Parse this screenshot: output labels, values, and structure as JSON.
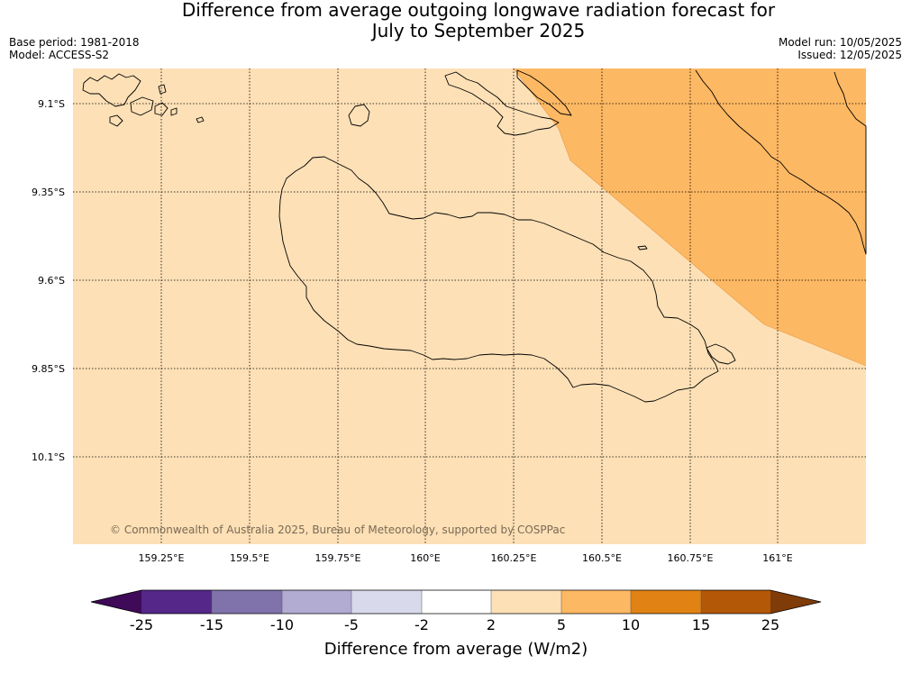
{
  "title": {
    "line1": "Difference from average outgoing longwave radiation forecast for",
    "line2": "July to September 2025"
  },
  "meta": {
    "base_period": "Base period: 1981-2018",
    "model": "Model: ACCESS-S2",
    "model_run": "Model run: 10/05/2025",
    "issued": "Issued: 12/05/2025"
  },
  "map": {
    "lat_labels": [
      "9.1°S",
      "9.35°S",
      "9.6°S",
      "9.85°S",
      "10.1°S"
    ],
    "lon_labels": [
      "159.25°E",
      "159.5°E",
      "159.75°E",
      "160°E",
      "160.25°E",
      "160.5°E",
      "160.75°E",
      "161°E"
    ],
    "copyright": "© Commonwealth of Australia 2025, Bureau of Meteorology, supported by COSPPac",
    "background_band": "2 to 5",
    "northeast_band": "5 to 10"
  },
  "colorbar": {
    "label": "Difference from average (W/m2)",
    "ticks": [
      "-25",
      "-15",
      "-10",
      "-5",
      "-2",
      "2",
      "5",
      "10",
      "15",
      "25"
    ],
    "colors": [
      "#3f0a57",
      "#542788",
      "#8073ac",
      "#b2abd2",
      "#d8daeb",
      "#ffffff",
      "#fee0b6",
      "#fdb863",
      "#e08214",
      "#b35806",
      "#7f3b08"
    ]
  }
}
